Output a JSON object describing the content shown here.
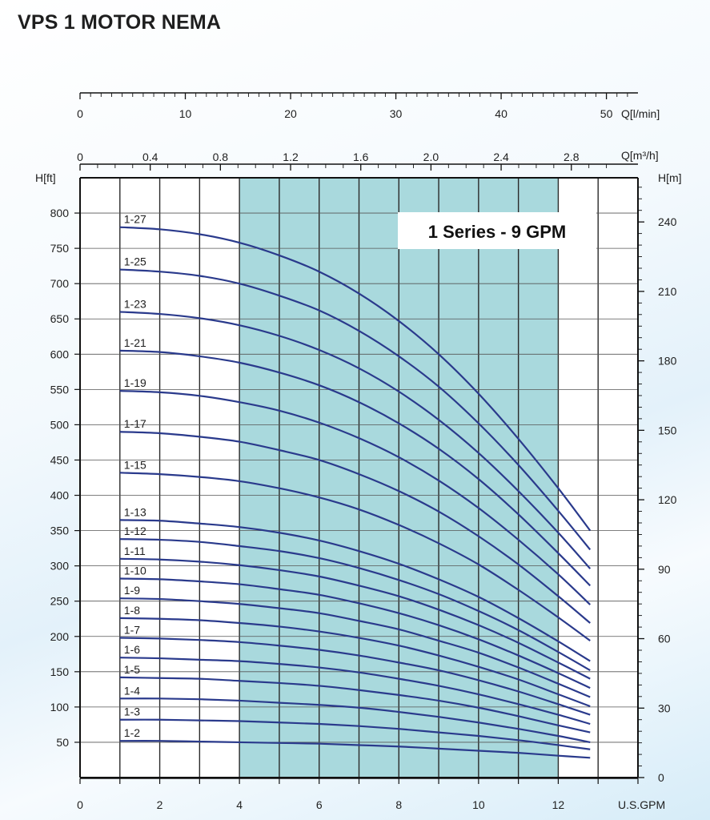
{
  "title": "VPS 1 MOTOR NEMA",
  "chart_data": {
    "type": "line",
    "annotation": "1 Series - 9 GPM",
    "colors": {
      "curve": "#2a3a8c",
      "band": "#a9d9dd",
      "grid": "#2a2a2a"
    },
    "x_axis": {
      "label": "U.S.GPM",
      "range": [
        0,
        14
      ],
      "ticks": [
        0,
        2,
        4,
        6,
        8,
        10,
        12
      ],
      "tick_labels": [
        "0",
        "2",
        "4",
        "6",
        "8",
        "10",
        "12"
      ]
    },
    "x_axis_top_lpm": {
      "label": "Q[l/min]",
      "ticks": [
        0,
        10,
        20,
        30,
        40,
        50
      ],
      "tick_labels": [
        "0",
        "10",
        "20",
        "30",
        "40",
        "50"
      ]
    },
    "x_axis_top_m3h": {
      "label": "Q[m³/h]",
      "ticks": [
        0,
        0.4,
        0.8,
        1.2,
        1.6,
        2.0,
        2.4,
        2.8
      ],
      "tick_labels": [
        "0",
        "0.4",
        "0.8",
        "1.2",
        "1.6",
        "2.0",
        "2.4",
        "2.8"
      ]
    },
    "y_axis_left": {
      "label": "H[ft]",
      "range": [
        0,
        850
      ],
      "ticks": [
        50,
        100,
        150,
        200,
        250,
        300,
        350,
        400,
        450,
        500,
        550,
        600,
        650,
        700,
        750,
        800
      ],
      "tick_labels": [
        "50",
        "100",
        "150",
        "200",
        "250",
        "300",
        "350",
        "400",
        "450",
        "500",
        "550",
        "600",
        "650",
        "700",
        "750",
        "800"
      ]
    },
    "y_axis_right": {
      "label": "H[m]",
      "ticks": [
        0,
        30,
        60,
        90,
        120,
        150,
        180,
        210,
        240
      ],
      "tick_labels": [
        "0",
        "30",
        "60",
        "90",
        "120",
        "150",
        "180",
        "210",
        "240"
      ]
    },
    "recommended_range": [
      4,
      12
    ],
    "grid": true,
    "series": [
      {
        "name": "1-27",
        "x": [
          1,
          2,
          3,
          4,
          5,
          6,
          7,
          8,
          9,
          10,
          11,
          12,
          12.8
        ],
        "y": [
          780,
          777,
          770,
          758,
          740,
          717,
          686,
          647,
          600,
          544,
          480,
          410,
          350
        ]
      },
      {
        "name": "1-25",
        "x": [
          1,
          2,
          3,
          4,
          5,
          6,
          7,
          8,
          9,
          10,
          11,
          12,
          12.8
        ],
        "y": [
          720,
          717,
          711,
          700,
          683,
          662,
          633,
          597,
          554,
          502,
          443,
          378,
          323
        ]
      },
      {
        "name": "1-23",
        "x": [
          1,
          2,
          3,
          4,
          5,
          6,
          7,
          8,
          9,
          10,
          11,
          12,
          12.8
        ],
        "y": [
          660,
          657,
          651,
          641,
          626,
          606,
          580,
          547,
          507,
          460,
          406,
          347,
          296
        ]
      },
      {
        "name": "1-21",
        "x": [
          1,
          2,
          3,
          4,
          5,
          6,
          7,
          8,
          9,
          10,
          11,
          12,
          12.8
        ],
        "y": [
          605,
          603,
          597,
          588,
          574,
          556,
          532,
          502,
          466,
          423,
          373,
          318,
          272
        ]
      },
      {
        "name": "1-19",
        "x": [
          1,
          2,
          3,
          4,
          5,
          6,
          7,
          8,
          9,
          10,
          11,
          12,
          12.8
        ],
        "y": [
          548,
          546,
          541,
          532,
          520,
          503,
          481,
          454,
          421,
          382,
          337,
          288,
          245
        ]
      },
      {
        "name": "1-17",
        "x": [
          1,
          2,
          3,
          4,
          5,
          6,
          7,
          8,
          9,
          10,
          11,
          12,
          12.8
        ],
        "y": [
          490,
          488,
          483,
          476,
          464,
          450,
          430,
          406,
          377,
          342,
          302,
          257,
          219
        ]
      },
      {
        "name": "1-15",
        "x": [
          1,
          2,
          3,
          4,
          5,
          6,
          7,
          8,
          9,
          10,
          11,
          12,
          12.8
        ],
        "y": [
          432,
          430,
          426,
          420,
          410,
          397,
          380,
          358,
          332,
          302,
          266,
          227,
          194
        ]
      },
      {
        "name": "1-13",
        "x": [
          1,
          2,
          3,
          4,
          5,
          6,
          7,
          8,
          9,
          10,
          11,
          12,
          12.8
        ],
        "y": [
          365,
          364,
          360,
          355,
          347,
          336,
          321,
          303,
          281,
          256,
          226,
          193,
          165
        ]
      },
      {
        "name": "1-12",
        "x": [
          1,
          2,
          3,
          4,
          5,
          6,
          7,
          8,
          9,
          10,
          11,
          12,
          12.8
        ],
        "y": [
          338,
          337,
          334,
          328,
          321,
          311,
          297,
          280,
          260,
          236,
          209,
          178,
          152
        ]
      },
      {
        "name": "1-11",
        "x": [
          1,
          2,
          3,
          4,
          5,
          6,
          7,
          8,
          9,
          10,
          11,
          12,
          12.8
        ],
        "y": [
          310,
          309,
          306,
          301,
          294,
          285,
          272,
          257,
          238,
          216,
          191,
          163,
          140
        ]
      },
      {
        "name": "1-10",
        "x": [
          1,
          2,
          3,
          4,
          5,
          6,
          7,
          8,
          9,
          10,
          11,
          12,
          12.8
        ],
        "y": [
          282,
          281,
          278,
          274,
          267,
          259,
          247,
          233,
          216,
          196,
          173,
          148,
          127
        ]
      },
      {
        "name": "1-9",
        "x": [
          1,
          2,
          3,
          4,
          5,
          6,
          7,
          8,
          9,
          10,
          11,
          12,
          12.8
        ],
        "y": [
          254,
          253,
          250,
          246,
          240,
          233,
          222,
          210,
          194,
          177,
          156,
          133,
          114
        ]
      },
      {
        "name": "1-8",
        "x": [
          1,
          2,
          3,
          4,
          5,
          6,
          7,
          8,
          9,
          10,
          11,
          12,
          12.8
        ],
        "y": [
          226,
          225,
          223,
          219,
          214,
          207,
          198,
          187,
          173,
          157,
          139,
          118,
          101
        ]
      },
      {
        "name": "1-7",
        "x": [
          1,
          2,
          3,
          4,
          5,
          6,
          7,
          8,
          9,
          10,
          11,
          12,
          12.8
        ],
        "y": [
          198,
          197,
          195,
          192,
          187,
          181,
          173,
          163,
          152,
          138,
          122,
          104,
          89
        ]
      },
      {
        "name": "1-6",
        "x": [
          1,
          2,
          3,
          4,
          5,
          6,
          7,
          8,
          9,
          10,
          11,
          12,
          12.8
        ],
        "y": [
          170,
          169,
          167,
          165,
          161,
          156,
          149,
          140,
          130,
          118,
          104,
          89,
          76
        ]
      },
      {
        "name": "1-5",
        "x": [
          1,
          2,
          3,
          4,
          5,
          6,
          7,
          8,
          9,
          10,
          11,
          12,
          12.8
        ],
        "y": [
          142,
          141,
          140,
          137,
          134,
          130,
          124,
          117,
          109,
          99,
          87,
          74,
          64
        ]
      },
      {
        "name": "1-4",
        "x": [
          1,
          2,
          3,
          4,
          5,
          6,
          7,
          8,
          9,
          10,
          11,
          12,
          12.8
        ],
        "y": [
          112,
          112,
          111,
          109,
          106,
          103,
          99,
          93,
          86,
          78,
          69,
          59,
          50
        ]
      },
      {
        "name": "1-3",
        "x": [
          1,
          2,
          3,
          4,
          5,
          6,
          7,
          8,
          9,
          10,
          11,
          12,
          12.8
        ],
        "y": [
          82,
          82,
          81,
          80,
          78,
          76,
          73,
          69,
          64,
          59,
          53,
          46,
          40
        ]
      },
      {
        "name": "1-2",
        "x": [
          1,
          2,
          3,
          4,
          5,
          6,
          7,
          8,
          9,
          10,
          11,
          12,
          12.8
        ],
        "y": [
          52,
          52,
          51,
          50,
          49,
          48,
          46,
          44,
          41,
          38,
          35,
          31,
          28
        ]
      }
    ]
  }
}
